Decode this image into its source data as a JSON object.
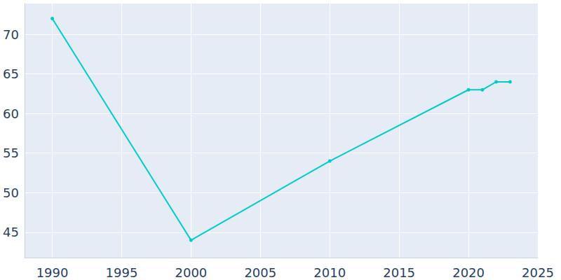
{
  "chart_data": {
    "type": "line",
    "x": [
      1990,
      2000,
      2010,
      2020,
      2021,
      2022,
      2023
    ],
    "values": [
      72,
      44,
      54,
      63,
      63,
      64,
      64
    ],
    "color": "#00cccc",
    "marker": "circle",
    "xlim": [
      1988,
      2025
    ],
    "xticks": [
      1990,
      1995,
      2000,
      2005,
      2010,
      2015,
      2020,
      2025
    ],
    "ylim": [
      41.8,
      73.9
    ],
    "yticks": [
      45,
      50,
      55,
      60,
      65,
      70
    ],
    "grid": true
  }
}
